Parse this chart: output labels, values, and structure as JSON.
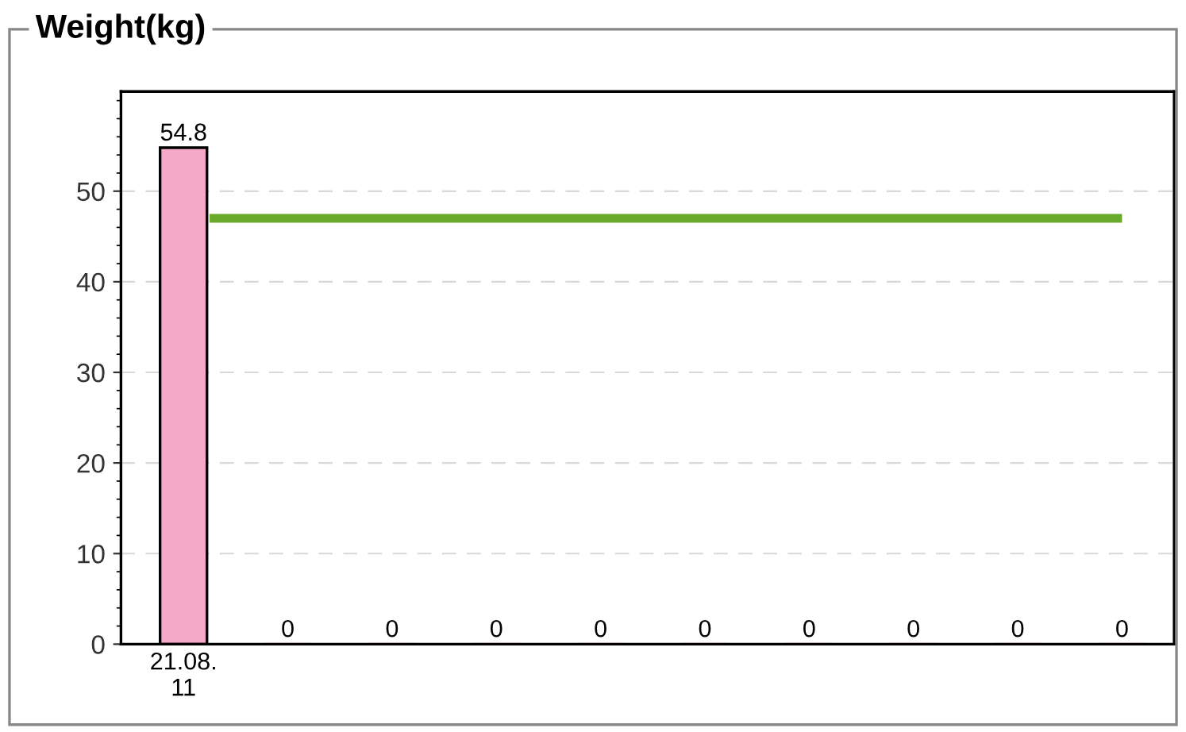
{
  "chart_data": {
    "type": "bar",
    "title": "Weight(kg)",
    "categories": [
      "21.08.\n11",
      null,
      null,
      null,
      null,
      null,
      null,
      null,
      null,
      null
    ],
    "values": [
      54.8,
      0,
      0,
      0,
      0,
      0,
      0,
      0,
      0,
      0
    ],
    "color": "#f4a9c9",
    "data_labels": true,
    "ylim": [
      0,
      61
    ],
    "yticks": [
      0,
      10,
      20,
      30,
      40,
      50
    ],
    "grid": "y",
    "ref_lines": [
      {
        "axis": "y",
        "value": 47,
        "color": "#6aaa2a"
      }
    ]
  }
}
